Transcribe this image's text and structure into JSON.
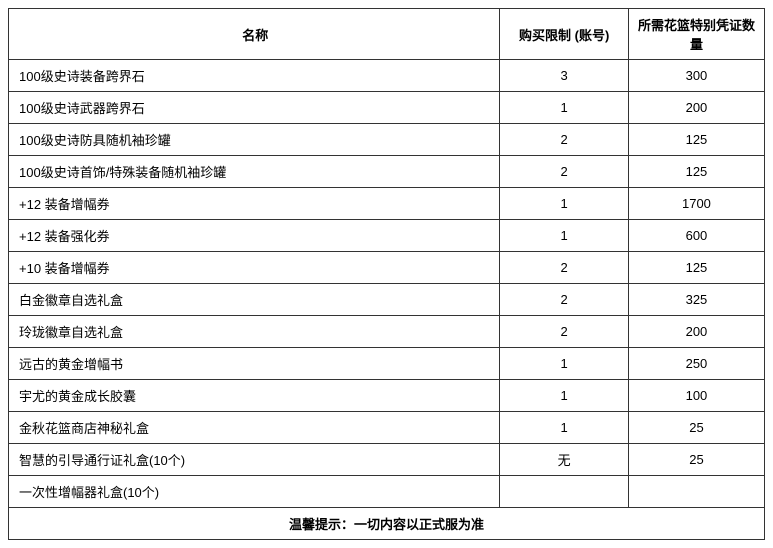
{
  "table": {
    "columns": [
      {
        "label": "名称",
        "width_pct": 65,
        "align": "left"
      },
      {
        "label": "购买限制 (账号)",
        "width_pct": 17,
        "align": "center"
      },
      {
        "label": "所需花篮特别凭证数量",
        "width_pct": 18,
        "align": "center"
      }
    ],
    "rows": [
      {
        "name": "100级史诗装备跨界石",
        "limit": "3",
        "cost": "300"
      },
      {
        "name": "100级史诗武器跨界石",
        "limit": "1",
        "cost": "200"
      },
      {
        "name": "100级史诗防具随机袖珍罐",
        "limit": "2",
        "cost": "125"
      },
      {
        "name": "100级史诗首饰/特殊装备随机袖珍罐",
        "limit": "2",
        "cost": "125"
      },
      {
        "name": "+12 装备增幅券",
        "limit": "1",
        "cost": "1700"
      },
      {
        "name": "+12 装备强化券",
        "limit": "1",
        "cost": "600"
      },
      {
        "name": "+10 装备增幅券",
        "limit": "2",
        "cost": "125"
      },
      {
        "name": "白金徽章自选礼盒",
        "limit": "2",
        "cost": "325"
      },
      {
        "name": "玲珑徽章自选礼盒",
        "limit": "2",
        "cost": "200"
      },
      {
        "name": "远古的黄金增幅书",
        "limit": "1",
        "cost": "250"
      },
      {
        "name": "宇尤的黄金成长胶囊",
        "limit": "1",
        "cost": "100"
      },
      {
        "name": "金秋花篮商店神秘礼盒",
        "limit": "1",
        "cost": "25"
      },
      {
        "name": "智慧的引导通行证礼盒(10个)",
        "limit": "无",
        "cost": "25"
      },
      {
        "name": "一次性增幅器礼盒(10个)",
        "limit": "",
        "cost": ""
      }
    ],
    "footer": "温馨提示：一切内容以正式服为准",
    "border_color": "#333333",
    "text_color": "#000000",
    "background_color": "#ffffff",
    "header_fontsize": 13,
    "cell_fontsize": 13,
    "header_fontweight": "bold"
  }
}
